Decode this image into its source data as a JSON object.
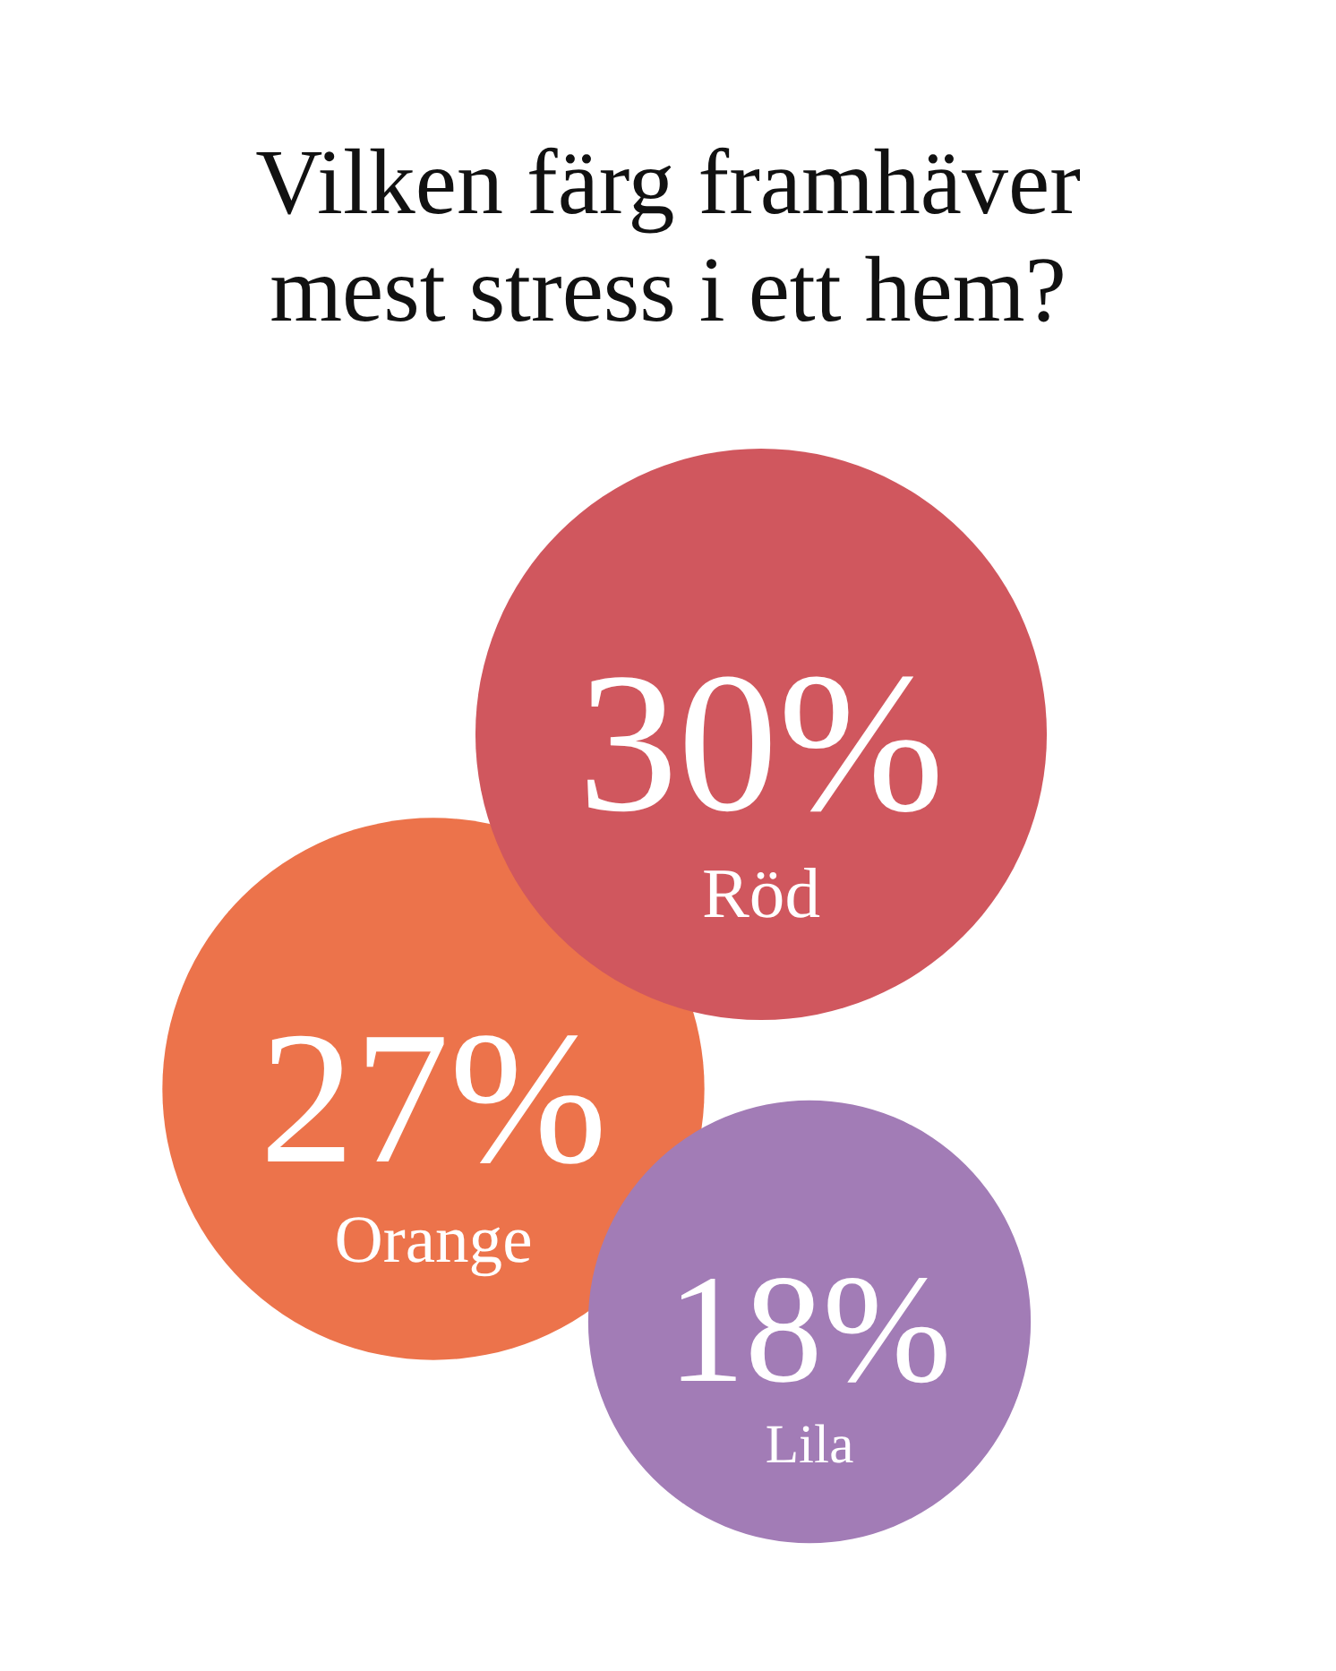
{
  "chart_data": {
    "type": "other",
    "title": "Vilken färg framhäver mest stress i ett hem?",
    "categories": [
      "Röd",
      "Orange",
      "Lila"
    ],
    "values": [
      30,
      27,
      18
    ],
    "value_labels": [
      "30%",
      "27%",
      "18%"
    ],
    "colors": [
      "#d0575e",
      "#ec734b",
      "#a27cb6"
    ]
  }
}
